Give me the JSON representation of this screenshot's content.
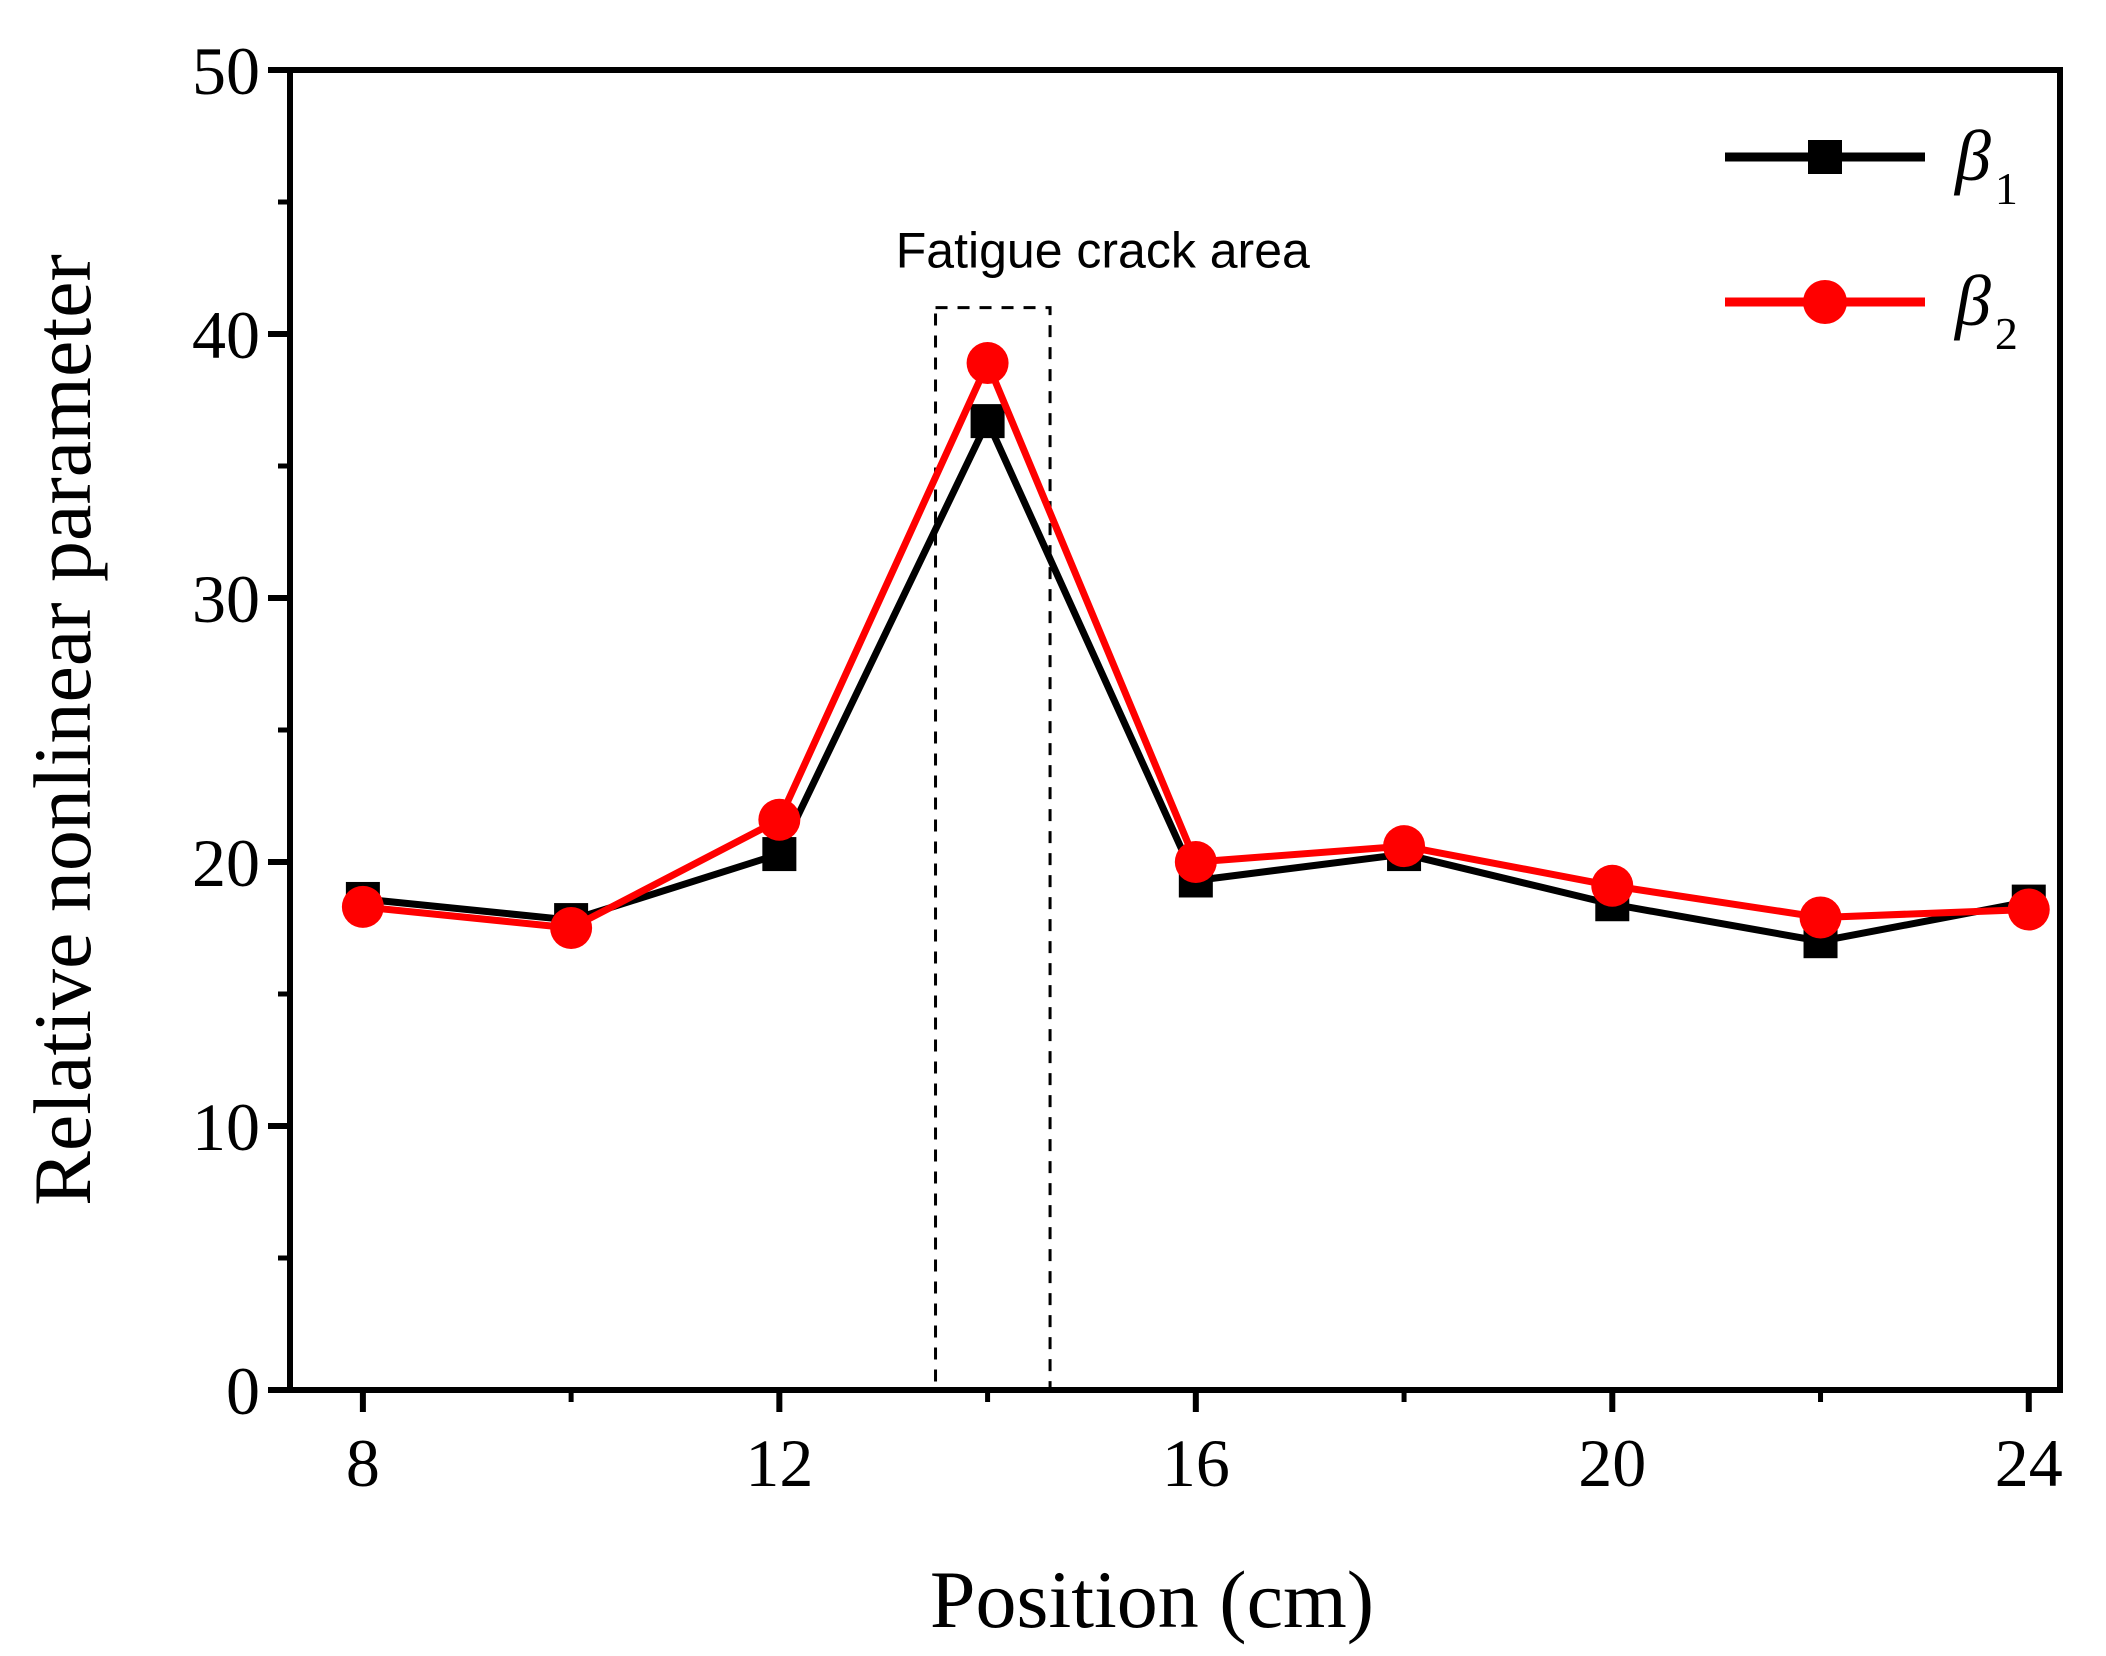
{
  "chart_data": {
    "type": "line",
    "title": "",
    "xlabel": "Position (cm)",
    "ylabel": "Relative nonlinear parameter",
    "x": [
      8,
      10,
      12,
      14,
      16,
      18,
      20,
      22,
      24
    ],
    "xlim": [
      7.3,
      24.3
    ],
    "ylim": [
      0,
      50
    ],
    "xticks": [
      8,
      12,
      16,
      20,
      24
    ],
    "xtick_labels": [
      "8",
      "12",
      "16",
      "20",
      "24"
    ],
    "yticks": [
      0,
      10,
      20,
      30,
      40,
      50
    ],
    "ytick_labels": [
      "0",
      "10",
      "20",
      "30",
      "40",
      "50"
    ],
    "grid": false,
    "legend_position": "top-right",
    "series": [
      {
        "name": "β1",
        "symbol": "β",
        "subscript": "1",
        "marker": "square",
        "color": "#000000",
        "values": [
          18.6,
          17.8,
          20.3,
          36.7,
          19.3,
          20.3,
          18.4,
          17.0,
          18.5
        ]
      },
      {
        "name": "β2",
        "symbol": "β",
        "subscript": "2",
        "marker": "circle",
        "color": "#ff0000",
        "values": [
          18.3,
          17.5,
          21.6,
          38.9,
          20.0,
          20.6,
          19.1,
          17.9,
          18.2
        ]
      }
    ],
    "annotations": [
      {
        "text": "Fatigue crack area",
        "box_x": [
          13.5,
          14.6
        ],
        "box_y": [
          0,
          41
        ]
      }
    ]
  }
}
